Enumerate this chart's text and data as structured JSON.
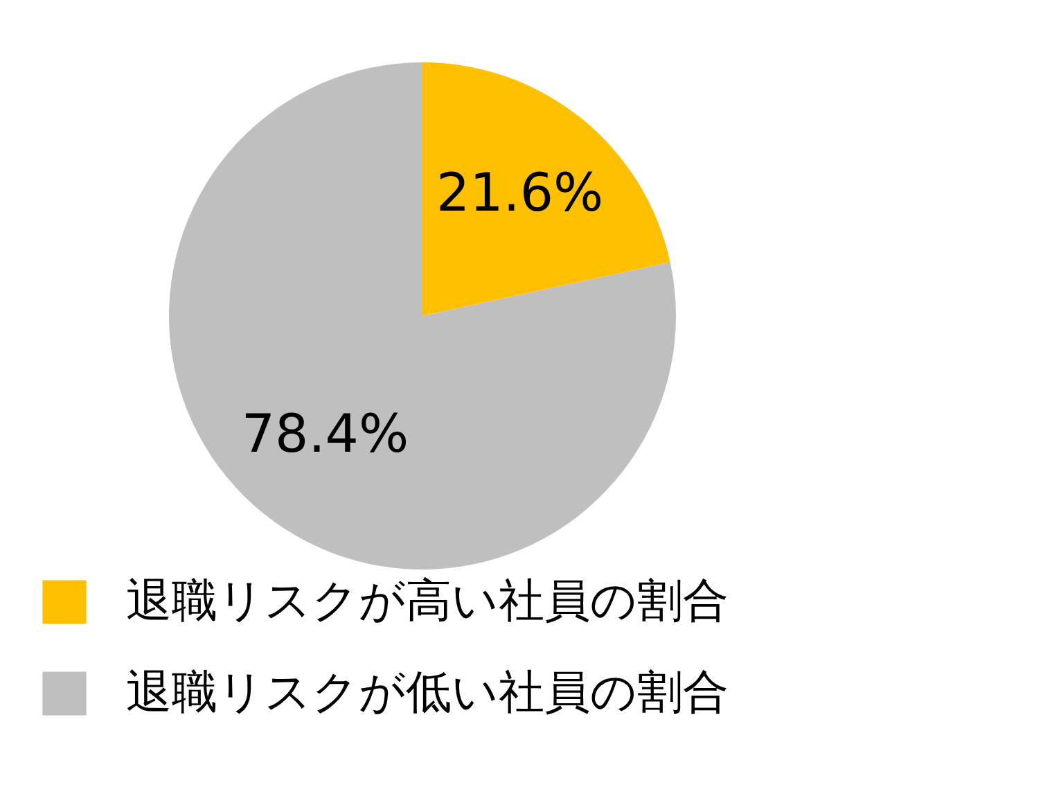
{
  "chart_data": {
    "type": "pie",
    "categories": [
      "退職リスクが高い社員の割合",
      "退職リスクが低い社員の割合"
    ],
    "values": [
      21.6,
      78.4
    ],
    "colors": [
      "#ffc000",
      "#bfbfbf"
    ],
    "value_labels": [
      "21.6%",
      "78.4%"
    ],
    "legend": "bottom left"
  }
}
